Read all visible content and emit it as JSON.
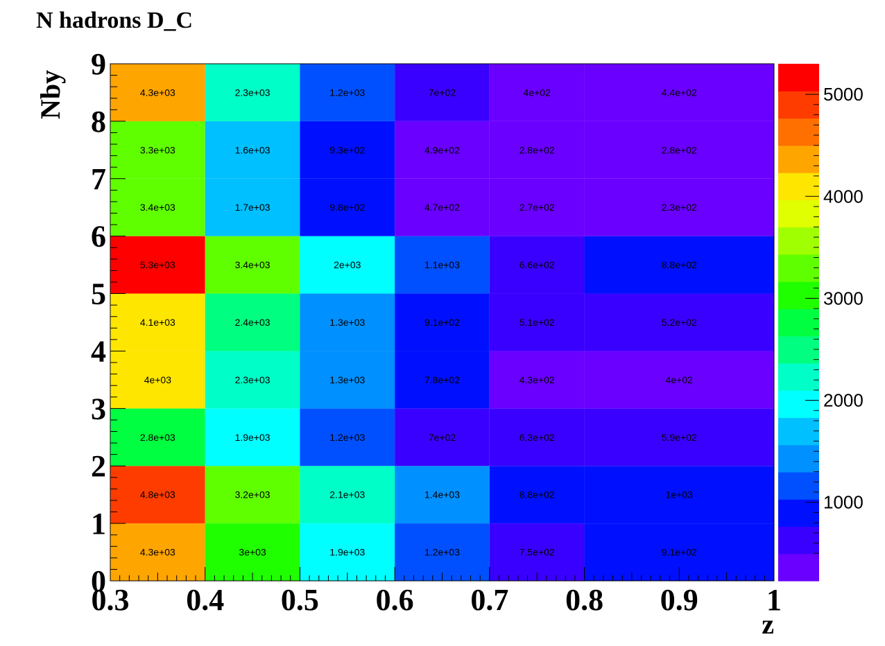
{
  "chart_data": {
    "type": "heatmap",
    "title": "N hadrons D_C",
    "xlabel": "z",
    "ylabel": "Nby",
    "x_edges": [
      0.3,
      0.4,
      0.5,
      0.6,
      0.7,
      0.8,
      1.0
    ],
    "y_edges": [
      0,
      1,
      2,
      3,
      4,
      5,
      6,
      7,
      8,
      9
    ],
    "xlim": [
      0.3,
      1.0
    ],
    "ylim": [
      0,
      9
    ],
    "x_tick_labels": [
      "0.3",
      "0.4",
      "0.5",
      "0.6",
      "0.7",
      "0.8",
      "0.9",
      "1"
    ],
    "y_tick_labels": [
      "0",
      "1",
      "2",
      "3",
      "4",
      "5",
      "6",
      "7",
      "8",
      "9"
    ],
    "values": [
      [
        4300,
        3000,
        1900,
        1200,
        750,
        910
      ],
      [
        4800,
        3200,
        2100,
        1400,
        880,
        1000
      ],
      [
        2800,
        1900,
        1200,
        700,
        630,
        590
      ],
      [
        4000,
        2300,
        1300,
        780,
        430,
        400
      ],
      [
        4100,
        2400,
        1300,
        910,
        510,
        520
      ],
      [
        5300,
        3400,
        2000,
        1100,
        660,
        880
      ],
      [
        3400,
        1700,
        980,
        470,
        270,
        230
      ],
      [
        3300,
        1600,
        930,
        490,
        280,
        280
      ],
      [
        4300,
        2300,
        1200,
        700,
        400,
        440
      ]
    ],
    "labels": [
      [
        "4.3e+03",
        "3e+03",
        "1.9e+03",
        "1.2e+03",
        "7.5e+02",
        "9.1e+02"
      ],
      [
        "4.8e+03",
        "3.2e+03",
        "2.1e+03",
        "1.4e+03",
        "8.8e+02",
        "1e+03"
      ],
      [
        "2.8e+03",
        "1.9e+03",
        "1.2e+03",
        "7e+02",
        "6.3e+02",
        "5.9e+02"
      ],
      [
        "4e+03",
        "2.3e+03",
        "1.3e+03",
        "7.8e+02",
        "4.3e+02",
        "4e+02"
      ],
      [
        "4.1e+03",
        "2.4e+03",
        "1.3e+03",
        "9.1e+02",
        "5.1e+02",
        "5.2e+02"
      ],
      [
        "5.3e+03",
        "3.4e+03",
        "2e+03",
        "1.1e+03",
        "6.6e+02",
        "8.8e+02"
      ],
      [
        "3.4e+03",
        "1.7e+03",
        "9.8e+02",
        "4.7e+02",
        "2.7e+02",
        "2.3e+02"
      ],
      [
        "3.3e+03",
        "1.6e+03",
        "9.3e+02",
        "4.9e+02",
        "2.8e+02",
        "2.8e+02"
      ],
      [
        "4.3e+03",
        "2.3e+03",
        "1.2e+03",
        "7e+02",
        "4e+02",
        "4.4e+02"
      ]
    ],
    "colorbar": {
      "min": 230,
      "max": 5300,
      "tick_values": [
        1000,
        2000,
        3000,
        4000,
        5000
      ],
      "tick_labels": [
        "1000",
        "2000",
        "3000",
        "4000",
        "5000"
      ],
      "palette": [
        "#6a00ff",
        "#3a00ff",
        "#0010ff",
        "#0050ff",
        "#0090ff",
        "#00c0ff",
        "#00ffff",
        "#00ffc8",
        "#00ff80",
        "#00ff40",
        "#20ff00",
        "#60ff00",
        "#a0ff00",
        "#e0ff00",
        "#ffe600",
        "#ffa500",
        "#ff7000",
        "#ff3c00",
        "#ff0000"
      ]
    }
  }
}
